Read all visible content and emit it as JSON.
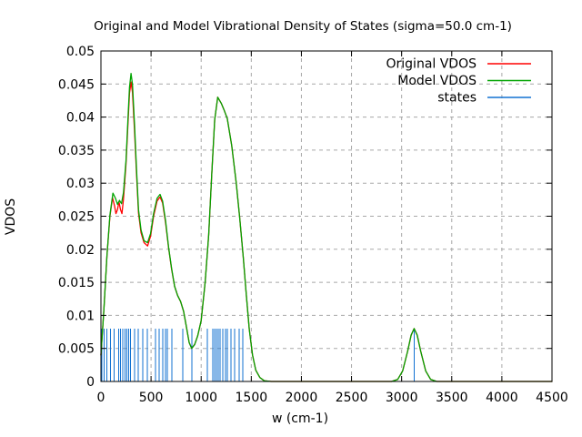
{
  "chart_data": {
    "type": "line",
    "title": "Original and Model Vibrational Density of States (sigma=50.0 cm-1)",
    "xlabel": "w (cm-1)",
    "ylabel": "VDOS",
    "xlim": [
      0,
      4500
    ],
    "ylim": [
      0,
      0.05
    ],
    "xticks": [
      0,
      500,
      1000,
      1500,
      2000,
      2500,
      3000,
      3500,
      4000,
      4500
    ],
    "xtick_labels": [
      "0",
      "500",
      "1000",
      "1500",
      "2000",
      "2500",
      "3000",
      "3500",
      "4000",
      "4500"
    ],
    "yticks": [
      0,
      0.005,
      0.01,
      0.015,
      0.02,
      0.025,
      0.03,
      0.035,
      0.04,
      0.045,
      0.05
    ],
    "ytick_labels": [
      "0",
      "0.005",
      "0.01",
      "0.015",
      "0.02",
      "0.025",
      "0.03",
      "0.035",
      "0.04",
      "0.045",
      "0.05"
    ],
    "grid": true,
    "grid_color": "#a8a8a8",
    "axis_color": "#000000",
    "background_color": "#ffffff",
    "legend_position": "top-right-inside",
    "series": [
      {
        "name": "Original VDOS",
        "color": "#ff0000",
        "style": "line",
        "points": [
          [
            0,
            0.004
          ],
          [
            30,
            0.011
          ],
          [
            60,
            0.019
          ],
          [
            90,
            0.025
          ],
          [
            115,
            0.0278
          ],
          [
            135,
            0.0266
          ],
          [
            150,
            0.0254
          ],
          [
            165,
            0.026
          ],
          [
            180,
            0.0272
          ],
          [
            195,
            0.026
          ],
          [
            210,
            0.0254
          ],
          [
            225,
            0.0276
          ],
          [
            250,
            0.033
          ],
          [
            270,
            0.0392
          ],
          [
            285,
            0.0436
          ],
          [
            300,
            0.0453
          ],
          [
            315,
            0.0437
          ],
          [
            335,
            0.038
          ],
          [
            355,
            0.0315
          ],
          [
            375,
            0.0255
          ],
          [
            400,
            0.0225
          ],
          [
            430,
            0.021
          ],
          [
            465,
            0.0205
          ],
          [
            495,
            0.022
          ],
          [
            525,
            0.025
          ],
          [
            560,
            0.0273
          ],
          [
            590,
            0.0279
          ],
          [
            615,
            0.027
          ],
          [
            645,
            0.024
          ],
          [
            675,
            0.0202
          ],
          [
            705,
            0.017
          ],
          [
            735,
            0.0144
          ],
          [
            765,
            0.013
          ],
          [
            795,
            0.0121
          ],
          [
            825,
            0.0106
          ],
          [
            855,
            0.0081
          ],
          [
            880,
            0.0059
          ],
          [
            905,
            0.005
          ],
          [
            935,
            0.0056
          ],
          [
            965,
            0.0069
          ],
          [
            1000,
            0.0092
          ],
          [
            1040,
            0.015
          ],
          [
            1075,
            0.0222
          ],
          [
            1105,
            0.0312
          ],
          [
            1135,
            0.0396
          ],
          [
            1165,
            0.043
          ],
          [
            1200,
            0.0421
          ],
          [
            1230,
            0.041
          ],
          [
            1260,
            0.0398
          ],
          [
            1305,
            0.0357
          ],
          [
            1350,
            0.03
          ],
          [
            1385,
            0.0246
          ],
          [
            1420,
            0.0188
          ],
          [
            1450,
            0.0132
          ],
          [
            1480,
            0.0079
          ],
          [
            1512,
            0.004
          ],
          [
            1545,
            0.0017
          ],
          [
            1585,
            0.0006
          ],
          [
            1630,
            0.0001
          ],
          [
            1700,
            0
          ],
          [
            2900,
            0
          ],
          [
            2960,
            0.0003
          ],
          [
            3010,
            0.0016
          ],
          [
            3060,
            0.0046
          ],
          [
            3095,
            0.007
          ],
          [
            3125,
            0.008
          ],
          [
            3155,
            0.007
          ],
          [
            3190,
            0.0046
          ],
          [
            3240,
            0.0016
          ],
          [
            3290,
            0.0003
          ],
          [
            3350,
            0
          ],
          [
            4500,
            0
          ]
        ]
      },
      {
        "name": "Model VDOS",
        "color": "#00a400",
        "style": "line",
        "points": [
          [
            0,
            0.004
          ],
          [
            30,
            0.011
          ],
          [
            60,
            0.019
          ],
          [
            90,
            0.0252
          ],
          [
            120,
            0.0285
          ],
          [
            145,
            0.0277
          ],
          [
            165,
            0.0268
          ],
          [
            185,
            0.0274
          ],
          [
            205,
            0.0269
          ],
          [
            225,
            0.0286
          ],
          [
            250,
            0.0335
          ],
          [
            270,
            0.04
          ],
          [
            285,
            0.0445
          ],
          [
            300,
            0.0466
          ],
          [
            315,
            0.0449
          ],
          [
            335,
            0.039
          ],
          [
            355,
            0.0322
          ],
          [
            375,
            0.026
          ],
          [
            400,
            0.0229
          ],
          [
            430,
            0.0213
          ],
          [
            465,
            0.021
          ],
          [
            495,
            0.0224
          ],
          [
            525,
            0.0254
          ],
          [
            560,
            0.0277
          ],
          [
            590,
            0.0283
          ],
          [
            615,
            0.0273
          ],
          [
            645,
            0.0243
          ],
          [
            675,
            0.0203
          ],
          [
            705,
            0.0171
          ],
          [
            735,
            0.0144
          ],
          [
            765,
            0.013
          ],
          [
            795,
            0.0121
          ],
          [
            825,
            0.0106
          ],
          [
            855,
            0.0081
          ],
          [
            880,
            0.0059
          ],
          [
            905,
            0.005
          ],
          [
            935,
            0.0056
          ],
          [
            965,
            0.0069
          ],
          [
            1000,
            0.0092
          ],
          [
            1040,
            0.015
          ],
          [
            1075,
            0.0222
          ],
          [
            1105,
            0.0312
          ],
          [
            1135,
            0.0396
          ],
          [
            1165,
            0.043
          ],
          [
            1200,
            0.0421
          ],
          [
            1230,
            0.041
          ],
          [
            1260,
            0.0398
          ],
          [
            1305,
            0.0357
          ],
          [
            1350,
            0.03
          ],
          [
            1385,
            0.0246
          ],
          [
            1420,
            0.0188
          ],
          [
            1450,
            0.0132
          ],
          [
            1480,
            0.0079
          ],
          [
            1512,
            0.004
          ],
          [
            1545,
            0.0017
          ],
          [
            1585,
            0.0006
          ],
          [
            1630,
            0.0001
          ],
          [
            1700,
            0
          ],
          [
            2900,
            0
          ],
          [
            2960,
            0.0003
          ],
          [
            3010,
            0.0016
          ],
          [
            3060,
            0.0046
          ],
          [
            3095,
            0.007
          ],
          [
            3125,
            0.008
          ],
          [
            3155,
            0.007
          ],
          [
            3190,
            0.0046
          ],
          [
            3240,
            0.0016
          ],
          [
            3290,
            0.0003
          ],
          [
            3350,
            0
          ],
          [
            4500,
            0
          ]
        ]
      },
      {
        "name": "states",
        "color": "#1272d2",
        "style": "impulses",
        "height": 0.008,
        "x": [
          8,
          30,
          57,
          93,
          130,
          175,
          193,
          220,
          239,
          257,
          275,
          293,
          336,
          372,
          417,
          463,
          544,
          581,
          617,
          644,
          662,
          708,
          817,
          907,
          1061,
          1116,
          1134,
          1152,
          1170,
          1188,
          1216,
          1243,
          1261,
          1297,
          1334,
          1379,
          1415,
          3125
        ]
      }
    ]
  }
}
